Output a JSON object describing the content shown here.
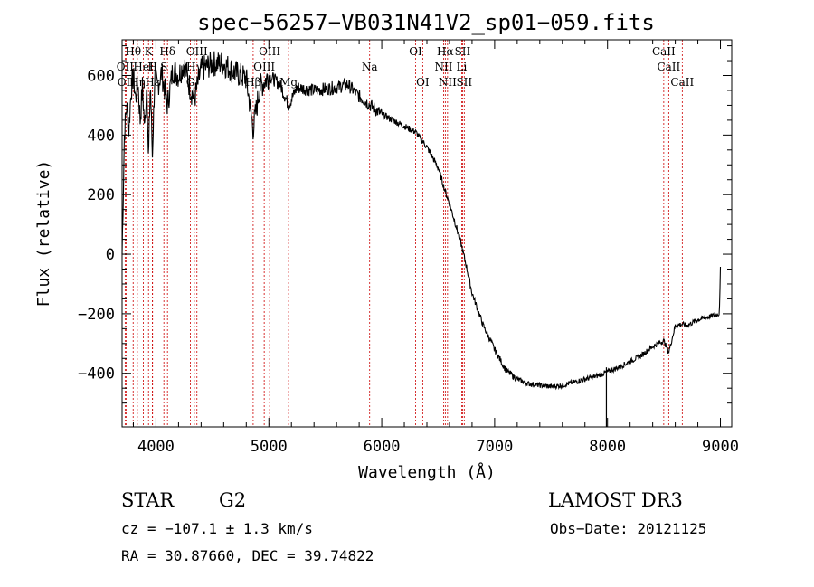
{
  "chart_data": {
    "type": "line",
    "title": "spec−56257−VB031N41V2_sp01−059.fits",
    "xlabel": "Wavelength (Å)",
    "ylabel": "Flux (relative)",
    "xlim": [
      3700,
      9100
    ],
    "ylim": [
      -580,
      720
    ],
    "xticks": [
      4000,
      5000,
      6000,
      7000,
      8000,
      9000
    ],
    "yticks": [
      -400,
      -200,
      0,
      200,
      400,
      600
    ],
    "ytick_labels": [
      "−400",
      "−200",
      "0",
      "200",
      "400",
      "600"
    ],
    "series": [
      {
        "name": "flux",
        "x": [
          3700,
          3720,
          3740,
          3760,
          3780,
          3800,
          3820,
          3840,
          3860,
          3880,
          3900,
          3920,
          3933,
          3950,
          3968,
          3990,
          4010,
          4050,
          4102,
          4150,
          4200,
          4250,
          4300,
          4340,
          4400,
          4500,
          4600,
          4700,
          4800,
          4861,
          4920,
          5000,
          5100,
          5175,
          5250,
          5400,
          5600,
          5700,
          5800,
          5900,
          6000,
          6100,
          6200,
          6300,
          6400,
          6500,
          6563,
          6600,
          6700,
          6750,
          6800,
          6900,
          7000,
          7100,
          7200,
          7300,
          7400,
          7500,
          7600,
          7700,
          7800,
          7900,
          8000,
          8100,
          8200,
          8300,
          8400,
          8498,
          8542,
          8600,
          8662,
          8700,
          8800,
          8900,
          8990,
          9000
        ],
        "y": [
          0,
          400,
          500,
          420,
          550,
          600,
          520,
          580,
          450,
          560,
          420,
          590,
          300,
          580,
          330,
          600,
          560,
          610,
          500,
          620,
          600,
          640,
          560,
          520,
          620,
          640,
          640,
          610,
          590,
          420,
          560,
          600,
          570,
          500,
          560,
          550,
          560,
          570,
          530,
          500,
          470,
          450,
          430,
          410,
          360,
          290,
          210,
          170,
          40,
          -40,
          -130,
          -240,
          -320,
          -390,
          -420,
          -435,
          -440,
          -445,
          -440,
          -430,
          -420,
          -410,
          -395,
          -380,
          -360,
          -340,
          -310,
          -290,
          -330,
          -240,
          -235,
          -240,
          -220,
          -210,
          -200,
          -50
        ]
      }
    ],
    "lines": [
      {
        "label": "Hθ",
        "wl": 3798,
        "row": 0
      },
      {
        "label": "OII",
        "wl": 3727,
        "row": 1
      },
      {
        "label": "OII",
        "wl": 3735,
        "row": 2
      },
      {
        "label": "Hη",
        "wl": 3835,
        "row": 2
      },
      {
        "label": "HeI",
        "wl": 3889,
        "row": 1
      },
      {
        "label": "K",
        "wl": 3934,
        "row": 0
      },
      {
        "label": "H",
        "wl": 3969,
        "row": 1
      },
      {
        "label": "Hε",
        "wl": 3970,
        "row": 2
      },
      {
        "label": "Hδ",
        "wl": 4102,
        "row": 0
      },
      {
        "label": "S",
        "wl": 4070,
        "row": 1
      },
      {
        "label": "OIII",
        "wl": 4363,
        "row": 0
      },
      {
        "label": "Hγ",
        "wl": 4340,
        "row": 1
      },
      {
        "label": "G",
        "wl": 4305,
        "row": 2
      },
      {
        "label": "OIII",
        "wl": 5007,
        "row": 0
      },
      {
        "label": "OIII",
        "wl": 4959,
        "row": 1
      },
      {
        "label": "Hβ",
        "wl": 4861,
        "row": 2
      },
      {
        "label": "Mg",
        "wl": 5175,
        "row": 2
      },
      {
        "label": "Na",
        "wl": 5893,
        "row": 1
      },
      {
        "label": "OI",
        "wl": 6300,
        "row": 0
      },
      {
        "label": "OI",
        "wl": 6363,
        "row": 2
      },
      {
        "label": "Hα",
        "wl": 6563,
        "row": 0
      },
      {
        "label": "SII",
        "wl": 6716,
        "row": 0
      },
      {
        "label": "NII",
        "wl": 6548,
        "row": 1
      },
      {
        "label": "Li",
        "wl": 6708,
        "row": 1
      },
      {
        "label": "NII",
        "wl": 6583,
        "row": 2
      },
      {
        "label": "SII",
        "wl": 6731,
        "row": 2
      },
      {
        "label": "CaII",
        "wl": 8498,
        "row": 0
      },
      {
        "label": "CaII",
        "wl": 8542,
        "row": 1
      },
      {
        "label": "CaII",
        "wl": 8662,
        "row": 2
      }
    ]
  },
  "info": {
    "object_class": "STAR",
    "subclass": "G2",
    "survey": "LAMOST DR3",
    "redshift": "cz = −107.1 ± 1.3 km/s",
    "obs_date": "Obs−Date: 20121125",
    "coords": "RA =  30.87660, DEC =  39.74822"
  },
  "colors": {
    "line_marker": "#cc0000",
    "spectrum": "#000000",
    "axes": "#000000"
  }
}
